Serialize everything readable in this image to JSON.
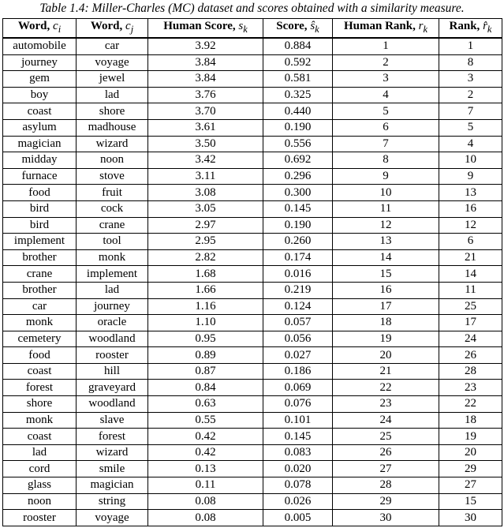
{
  "caption": "Table 1.4: Miller-Charles (MC) dataset and scores obtained with a similarity measure.",
  "columns": [
    {
      "label": "Word, ",
      "symbol": "c",
      "sub": "i"
    },
    {
      "label": "Word, ",
      "symbol": "c",
      "sub": "j"
    },
    {
      "label": "Human Score, ",
      "symbol": "s",
      "sub": "k"
    },
    {
      "label": "Score, ",
      "symbol": "ŝ",
      "sub": "k"
    },
    {
      "label": "Human Rank, ",
      "symbol": "r",
      "sub": "k"
    },
    {
      "label": "Rank, ",
      "symbol": "r̂",
      "sub": "k"
    }
  ],
  "rows": [
    [
      "automobile",
      "car",
      "3.92",
      "0.884",
      "1",
      "1"
    ],
    [
      "journey",
      "voyage",
      "3.84",
      "0.592",
      "2",
      "8"
    ],
    [
      "gem",
      "jewel",
      "3.84",
      "0.581",
      "3",
      "3"
    ],
    [
      "boy",
      "lad",
      "3.76",
      "0.325",
      "4",
      "2"
    ],
    [
      "coast",
      "shore",
      "3.70",
      "0.440",
      "5",
      "7"
    ],
    [
      "asylum",
      "madhouse",
      "3.61",
      "0.190",
      "6",
      "5"
    ],
    [
      "magician",
      "wizard",
      "3.50",
      "0.556",
      "7",
      "4"
    ],
    [
      "midday",
      "noon",
      "3.42",
      "0.692",
      "8",
      "10"
    ],
    [
      "furnace",
      "stove",
      "3.11",
      "0.296",
      "9",
      "9"
    ],
    [
      "food",
      "fruit",
      "3.08",
      "0.300",
      "10",
      "13"
    ],
    [
      "bird",
      "cock",
      "3.05",
      "0.145",
      "11",
      "16"
    ],
    [
      "bird",
      "crane",
      "2.97",
      "0.190",
      "12",
      "12"
    ],
    [
      "implement",
      "tool",
      "2.95",
      "0.260",
      "13",
      "6"
    ],
    [
      "brother",
      "monk",
      "2.82",
      "0.174",
      "14",
      "21"
    ],
    [
      "crane",
      "implement",
      "1.68",
      "0.016",
      "15",
      "14"
    ],
    [
      "brother",
      "lad",
      "1.66",
      "0.219",
      "16",
      "11"
    ],
    [
      "car",
      "journey",
      "1.16",
      "0.124",
      "17",
      "25"
    ],
    [
      "monk",
      "oracle",
      "1.10",
      "0.057",
      "18",
      "17"
    ],
    [
      "cemetery",
      "woodland",
      "0.95",
      "0.056",
      "19",
      "24"
    ],
    [
      "food",
      "rooster",
      "0.89",
      "0.027",
      "20",
      "26"
    ],
    [
      "coast",
      "hill",
      "0.87",
      "0.186",
      "21",
      "28"
    ],
    [
      "forest",
      "graveyard",
      "0.84",
      "0.069",
      "22",
      "23"
    ],
    [
      "shore",
      "woodland",
      "0.63",
      "0.076",
      "23",
      "22"
    ],
    [
      "monk",
      "slave",
      "0.55",
      "0.101",
      "24",
      "18"
    ],
    [
      "coast",
      "forest",
      "0.42",
      "0.145",
      "25",
      "19"
    ],
    [
      "lad",
      "wizard",
      "0.42",
      "0.083",
      "26",
      "20"
    ],
    [
      "cord",
      "smile",
      "0.13",
      "0.020",
      "27",
      "29"
    ],
    [
      "glass",
      "magician",
      "0.11",
      "0.078",
      "28",
      "27"
    ],
    [
      "noon",
      "string",
      "0.08",
      "0.026",
      "29",
      "15"
    ],
    [
      "rooster",
      "voyage",
      "0.08",
      "0.005",
      "30",
      "30"
    ]
  ]
}
